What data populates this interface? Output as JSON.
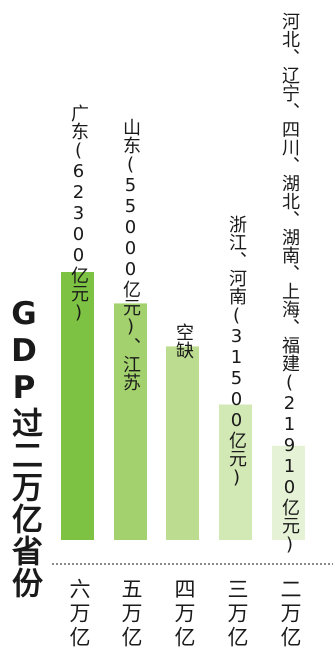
{
  "chart_data": {
    "type": "bar",
    "title": "GDP过二万亿省份",
    "xlabel": "",
    "ylabel": "",
    "categories": [
      "六万亿",
      "五万亿",
      "四万亿",
      "三万亿",
      "二万亿"
    ],
    "values": [
      62300,
      55000,
      45000,
      31500,
      21910
    ],
    "bar_labels": [
      "广东(62300亿元)",
      "山东(55000亿元)、江苏",
      "空缺",
      "浙江、河南(31500亿元)",
      "河北、辽宁、四川、湖北、湖南、上海、福建(21910亿元)"
    ],
    "ylim": [
      0,
      62300
    ],
    "grid": false,
    "legend": "none",
    "colors": [
      "#7dc242",
      "#a2d16d",
      "#bcdd90",
      "#d3e9b5",
      "#e6f2d6"
    ],
    "baseline_color": "#444444"
  }
}
